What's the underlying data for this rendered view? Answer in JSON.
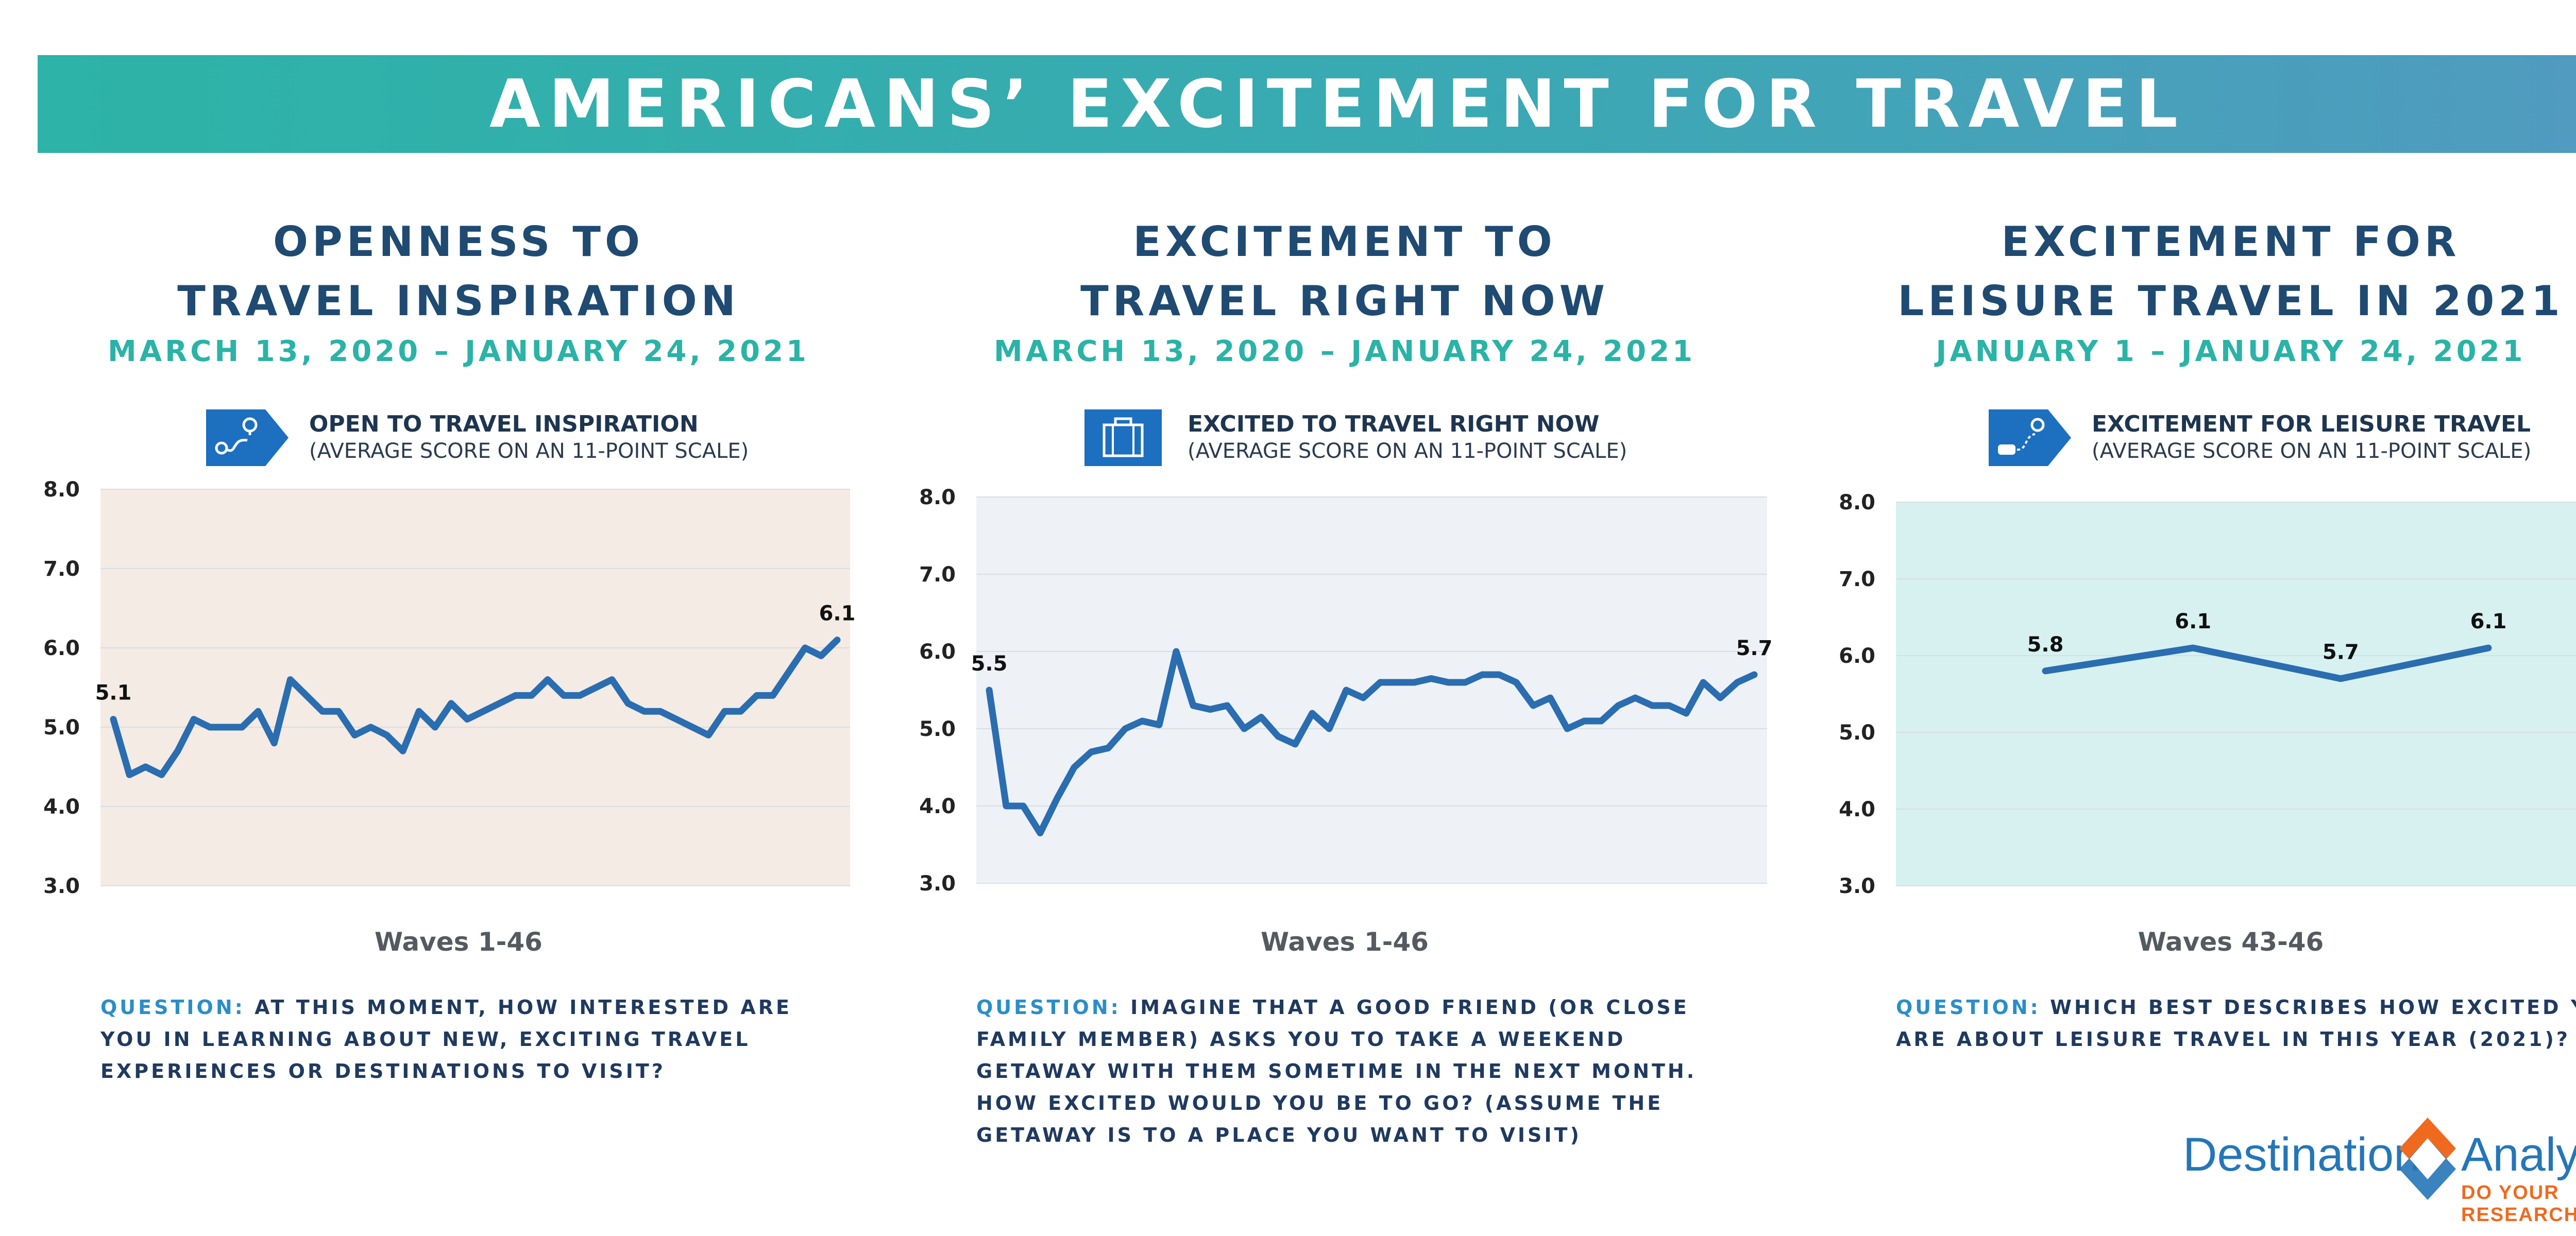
{
  "header": {
    "title": "AMERICANS’ EXCITEMENT FOR TRAVEL"
  },
  "panels": [
    {
      "title_line1": "OPENNESS TO",
      "title_line2": "TRAVEL INSPIRATION",
      "date_range": "MARCH 13, 2020 – JANUARY 24, 2021",
      "legend_label": "OPEN TO TRAVEL INSPIRATION",
      "legend_sub": "(AVERAGE SCORE ON AN 11-POINT SCALE)",
      "icon": "map-route-icon",
      "waves_label": "Waves 1-46",
      "question_label": "QUESTION:",
      "question_text": "AT THIS MOMENT, HOW INTERESTED ARE YOU IN LEARNING ABOUT NEW, EXCITING TRAVEL EXPERIENCES OR DESTINATIONS TO VISIT?"
    },
    {
      "title_line1": "EXCITEMENT TO",
      "title_line2": "TRAVEL RIGHT NOW",
      "date_range": "MARCH 13, 2020 – JANUARY 24, 2021",
      "legend_label": "EXCITED TO TRAVEL RIGHT NOW",
      "legend_sub": "(AVERAGE SCORE ON AN 11-POINT SCALE)",
      "icon": "suitcase-icon",
      "waves_label": "Waves 1-46",
      "question_label": "QUESTION:",
      "question_text": "IMAGINE THAT A GOOD FRIEND (OR CLOSE FAMILY MEMBER) ASKS YOU TO TAKE A WEEKEND GETAWAY WITH THEM SOMETIME IN THE NEXT MONTH. HOW EXCITED WOULD YOU BE TO GO? (ASSUME THE GETAWAY IS TO A PLACE YOU WANT TO VISIT)"
    },
    {
      "title_line1": "EXCITEMENT FOR",
      "title_line2": "LEISURE TRAVEL IN 2021",
      "date_range": "JANUARY 1 – JANUARY 24, 2021",
      "legend_label": "EXCITEMENT FOR LEISURE TRAVEL",
      "legend_sub": "(AVERAGE SCORE ON AN 11-POINT SCALE)",
      "icon": "car-route-icon",
      "waves_label": "Waves 43-46",
      "question_label": "QUESTION:",
      "question_text": "WHICH BEST DESCRIBES HOW EXCITED YOU ARE ABOUT LEISURE TRAVEL IN THIS YEAR (2021)?"
    }
  ],
  "brand": {
    "name_part1": "Destination",
    "name_part2": "Analysts",
    "tagline": "DO YOUR RESEARCH"
  },
  "colors": {
    "line": "#2a6db0",
    "title": "#1f4a72",
    "accent": "#2ab3a6",
    "banner_start": "#2db3a7",
    "banner_end": "#519ac0"
  },
  "chart_data": [
    {
      "type": "line",
      "x": [
        "1",
        "2",
        "3",
        "4",
        "5",
        "6",
        "7",
        "8",
        "9",
        "10",
        "11",
        "12",
        "13",
        "14",
        "15",
        "16",
        "17",
        "18",
        "19",
        "20",
        "21",
        "22",
        "23",
        "24",
        "25",
        "26",
        "27",
        "28",
        "29",
        "30",
        "31",
        "32",
        "33",
        "34",
        "35",
        "36",
        "37",
        "38",
        "39",
        "40",
        "41",
        "42",
        "43",
        "44",
        "45",
        "46"
      ],
      "series": [
        {
          "values": [
            5.1,
            4.4,
            4.5,
            4.4,
            4.7,
            5.1,
            5.0,
            5.0,
            5.0,
            5.2,
            4.8,
            5.6,
            5.4,
            5.2,
            5.2,
            4.9,
            5.0,
            4.9,
            4.7,
            5.2,
            5.0,
            5.3,
            5.1,
            5.2,
            5.3,
            5.4,
            5.4,
            5.6,
            5.4,
            5.4,
            5.5,
            5.6,
            5.3,
            5.2,
            5.2,
            5.1,
            5.0,
            4.9,
            5.2,
            5.2,
            5.4,
            5.4,
            5.7,
            6.0,
            5.9,
            6.1
          ]
        }
      ],
      "ylim": [
        3.0,
        8.0
      ],
      "yticks": [
        "3.0",
        "4.0",
        "5.0",
        "6.0",
        "7.0",
        "8.0"
      ],
      "labels": [
        {
          "index": 0,
          "text": "5.1"
        },
        {
          "index": 45,
          "text": "6.1"
        }
      ],
      "grid": true
    },
    {
      "type": "line",
      "x": [
        "1",
        "2",
        "3",
        "4",
        "5",
        "6",
        "7",
        "8",
        "9",
        "10",
        "11",
        "12",
        "13",
        "14",
        "15",
        "16",
        "17",
        "18",
        "19",
        "20",
        "21",
        "22",
        "23",
        "24",
        "25",
        "26",
        "27",
        "28",
        "29",
        "30",
        "31",
        "32",
        "33",
        "34",
        "35",
        "36",
        "37",
        "38",
        "39",
        "40",
        "41",
        "42",
        "43",
        "44",
        "45",
        "46"
      ],
      "series": [
        {
          "values": [
            5.5,
            4.0,
            4.0,
            3.65,
            4.1,
            4.5,
            4.7,
            4.75,
            5.0,
            5.1,
            5.05,
            6.0,
            5.3,
            5.25,
            5.3,
            5.0,
            5.15,
            4.9,
            4.8,
            5.2,
            5.0,
            5.5,
            5.4,
            5.6,
            5.6,
            5.6,
            5.65,
            5.6,
            5.6,
            5.7,
            5.7,
            5.6,
            5.3,
            5.4,
            5.0,
            5.1,
            5.1,
            5.3,
            5.4,
            5.3,
            5.3,
            5.2,
            5.6,
            5.4,
            5.6,
            5.7
          ]
        }
      ],
      "ylim": [
        3.0,
        8.0
      ],
      "yticks": [
        "3.0",
        "4.0",
        "5.0",
        "6.0",
        "7.0",
        "8.0"
      ],
      "labels": [
        {
          "index": 0,
          "text": "5.5"
        },
        {
          "index": 45,
          "text": "5.7"
        }
      ],
      "grid": true
    },
    {
      "type": "line",
      "x": [
        "43",
        "44",
        "45",
        "46"
      ],
      "series": [
        {
          "values": [
            5.8,
            6.1,
            5.7,
            6.1
          ]
        }
      ],
      "ylim": [
        3.0,
        8.0
      ],
      "yticks": [
        "3.0",
        "4.0",
        "5.0",
        "6.0",
        "7.0",
        "8.0"
      ],
      "labels": [
        {
          "index": 0,
          "text": "5.8"
        },
        {
          "index": 1,
          "text": "6.1"
        },
        {
          "index": 2,
          "text": "5.7"
        },
        {
          "index": 3,
          "text": "6.1"
        }
      ],
      "grid": true
    }
  ]
}
